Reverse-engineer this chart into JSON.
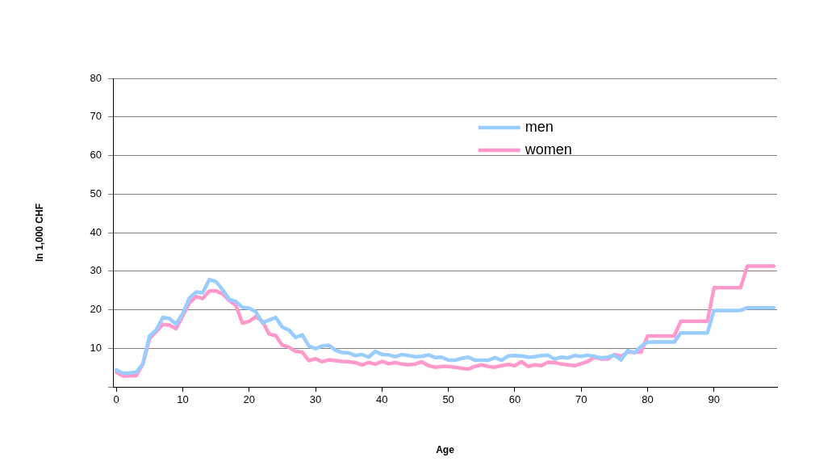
{
  "chart_data": {
    "type": "line",
    "xlabel": "Age",
    "ylabel": "In 1,000 CHF",
    "x": [
      0,
      1,
      2,
      3,
      4,
      5,
      6,
      7,
      8,
      9,
      10,
      11,
      12,
      13,
      14,
      15,
      16,
      17,
      18,
      19,
      20,
      21,
      22,
      23,
      24,
      25,
      26,
      27,
      28,
      29,
      30,
      31,
      32,
      33,
      34,
      35,
      36,
      37,
      38,
      39,
      40,
      41,
      42,
      43,
      44,
      45,
      46,
      47,
      48,
      49,
      50,
      51,
      52,
      53,
      54,
      55,
      56,
      57,
      58,
      59,
      60,
      61,
      62,
      63,
      64,
      65,
      66,
      67,
      68,
      69,
      70,
      71,
      72,
      73,
      74,
      75,
      76,
      77,
      78,
      79,
      80,
      81,
      82,
      83,
      84,
      85,
      86,
      87,
      88,
      89,
      90,
      91,
      92,
      93,
      94,
      95,
      96,
      97,
      98,
      99
    ],
    "series": [
      {
        "name": "men",
        "color": "#99ccff",
        "values": [
          4.4,
          3.5,
          3.6,
          3.8,
          6,
          13.2,
          14.7,
          18,
          17.7,
          16.3,
          19,
          23,
          24.6,
          24.4,
          27.8,
          27.3,
          25.2,
          22.7,
          22.1,
          20.6,
          20.4,
          19.5,
          16.6,
          17.3,
          18,
          15.5,
          14.7,
          12.8,
          13.5,
          10.6,
          9.9,
          10.6,
          10.8,
          9.5,
          8.9,
          8.8,
          8.1,
          8.4,
          7.7,
          9.2,
          8.4,
          8.3,
          7.8,
          8.4,
          8.1,
          7.8,
          7.9,
          8.3,
          7.6,
          7.7,
          6.9,
          6.9,
          7.4,
          7.7,
          6.9,
          6.9,
          6.9,
          7.6,
          6.9,
          8,
          8.1,
          8,
          7.7,
          7.8,
          8.1,
          8.2,
          7.2,
          7.7,
          7.5,
          8.1,
          7.9,
          8.2,
          7.9,
          7.5,
          7.7,
          8.2,
          7,
          9.4,
          8.8,
          10.5,
          11.6,
          11.6,
          11.6,
          11.6,
          11.6,
          14,
          14,
          14,
          14,
          14,
          19.8,
          19.8,
          19.8,
          19.8,
          19.8,
          20.5,
          20.5,
          20.5,
          20.5,
          20.5
        ]
      },
      {
        "name": "women",
        "color": "#ff99cc",
        "values": [
          3.8,
          2.8,
          2.9,
          2.9,
          5.9,
          12.5,
          14.3,
          16.2,
          16,
          15.1,
          18.4,
          21.7,
          23.4,
          22.9,
          24.8,
          24.9,
          24.1,
          22.4,
          21.1,
          16.5,
          17,
          18.2,
          17,
          13.7,
          13.3,
          10.8,
          10.3,
          9.2,
          9,
          6.8,
          7.3,
          6.5,
          7,
          6.8,
          6.6,
          6.5,
          6.3,
          5.7,
          6.3,
          5.9,
          6.6,
          6,
          6.3,
          5.9,
          5.7,
          5.9,
          6.5,
          5.5,
          5.1,
          5.3,
          5.3,
          5.1,
          4.8,
          4.6,
          5.3,
          5.7,
          5.3,
          5.1,
          5.5,
          5.8,
          5.5,
          6.5,
          5.3,
          5.7,
          5.5,
          6.4,
          6.3,
          5.9,
          5.7,
          5.5,
          6,
          6.6,
          7.7,
          7.2,
          7.2,
          8.4,
          7.9,
          9,
          9,
          9,
          13.2,
          13.2,
          13.2,
          13.2,
          13.2,
          17,
          17,
          17,
          17,
          17,
          25.7,
          25.7,
          25.7,
          25.7,
          25.7,
          31.3,
          31.3,
          31.3,
          31.3,
          31.3
        ]
      }
    ],
    "xlim": [
      -0.5,
      99.5
    ],
    "xticks": [
      0,
      10,
      20,
      30,
      40,
      50,
      60,
      70,
      80,
      90
    ],
    "ylim": [
      0,
      80
    ],
    "yticks": [
      {
        "value": 0,
        "label": null
      },
      10,
      20,
      30,
      40,
      50,
      60,
      70,
      80
    ],
    "grid": "y",
    "legend": "top right",
    "marker": "none",
    "line_style": "solid"
  }
}
